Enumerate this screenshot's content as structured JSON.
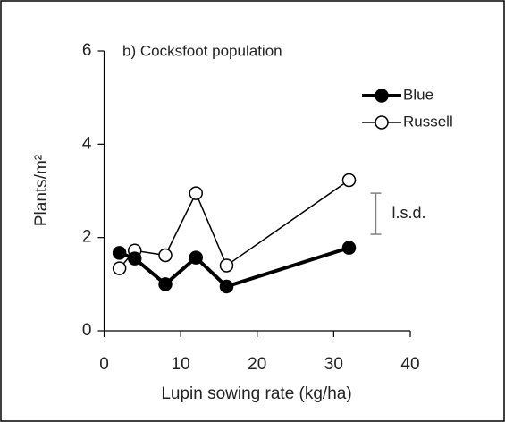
{
  "chart_data": {
    "type": "line",
    "annotation": "b) Cocksfoot population",
    "x_label": "Lupin sowing rate (kg/ha)",
    "y_label": "Plants/m²",
    "x": [
      2,
      4,
      8,
      12,
      16,
      32
    ],
    "series": [
      {
        "name": "Blue",
        "color": "#000000",
        "marker": "filled",
        "values": [
          1.67,
          1.55,
          1.0,
          1.57,
          0.95,
          1.78
        ]
      },
      {
        "name": "Russell",
        "color": "#000000",
        "marker": "open",
        "values": [
          1.34,
          1.72,
          1.62,
          2.95,
          1.4,
          3.23
        ]
      }
    ],
    "lsd": {
      "label": "l.s.d.",
      "x": 35.5,
      "low": 2.07,
      "high": 2.95,
      "color": "#808080"
    },
    "xlim": [
      0,
      40
    ],
    "xticks": [
      0,
      10,
      20,
      30,
      40
    ],
    "ylim": [
      0,
      6
    ],
    "yticks": [
      0,
      2,
      4,
      6
    ],
    "legend": "top-right"
  }
}
